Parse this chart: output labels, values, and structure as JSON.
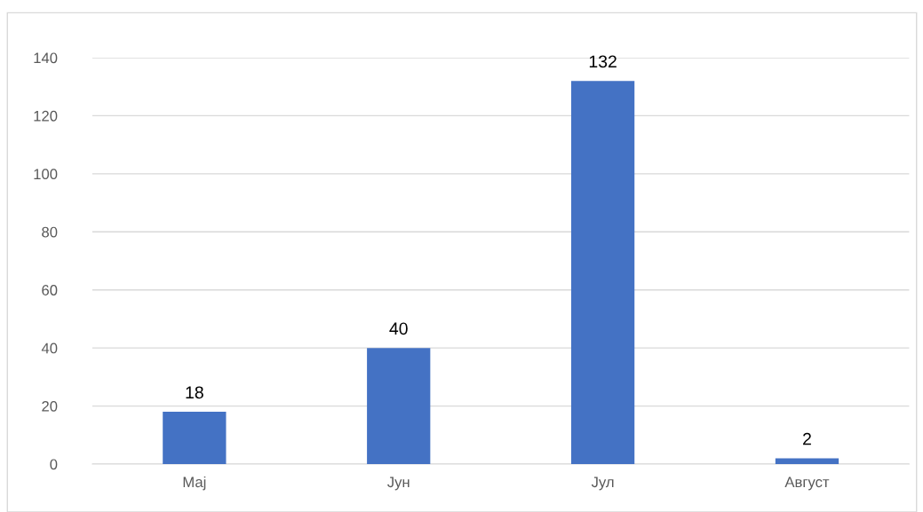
{
  "chart_data": {
    "type": "bar",
    "categories": [
      "Мај",
      "Јун",
      "Јул",
      "Август"
    ],
    "values": [
      18,
      40,
      132,
      2
    ],
    "color": "#4472c4",
    "ylim": [
      0,
      140
    ],
    "yticks": [
      0,
      20,
      40,
      60,
      80,
      100,
      120,
      140
    ],
    "grid": "y",
    "data_labels": true
  }
}
